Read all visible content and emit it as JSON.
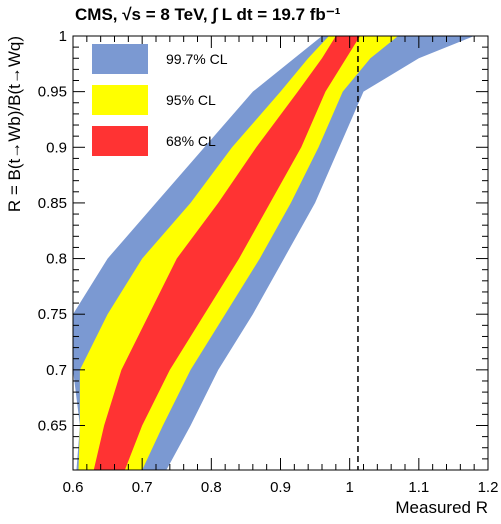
{
  "chart_data": {
    "type": "area",
    "title": "CMS,  √s = 8 TeV,  ∫ L dt = 19.7 fb⁻¹",
    "xlabel": "Measured R",
    "ylabel": "R = B(t→Wb)/B(t→Wq)",
    "xlim": [
      0.6,
      1.2
    ],
    "ylim": [
      0.61,
      1.0
    ],
    "xticks": [
      0.6,
      0.7,
      0.8,
      0.9,
      1.0,
      1.1,
      1.2
    ],
    "xtick_labels": [
      "0.6",
      "0.7",
      "0.8",
      "0.9",
      "1",
      "1.1",
      "1.2"
    ],
    "yticks": [
      0.65,
      0.7,
      0.75,
      0.8,
      0.85,
      0.9,
      0.95,
      1.0
    ],
    "ytick_labels": [
      "0.65",
      "0.7",
      "0.75",
      "0.8",
      "0.85",
      "0.9",
      "0.95",
      "1"
    ],
    "reference_line": {
      "x": 1.012,
      "style": "dashed"
    },
    "legend_position": "top-left",
    "series": [
      {
        "name": "99.7% CL",
        "color": "#7b99d2",
        "y": [
          0.61,
          0.65,
          0.7,
          0.75,
          0.8,
          0.85,
          0.9,
          0.95,
          0.98,
          1.0
        ],
        "x_low": [
          0.605,
          0.61,
          0.6,
          0.6,
          0.65,
          0.72,
          0.79,
          0.86,
          0.92,
          0.96
        ],
        "x_high": [
          0.735,
          0.77,
          0.81,
          0.86,
          0.905,
          0.95,
          0.985,
          1.02,
          1.1,
          1.18
        ]
      },
      {
        "name": "95% CL",
        "color": "#ffff00",
        "y": [
          0.61,
          0.65,
          0.7,
          0.75,
          0.8,
          0.85,
          0.9,
          0.95,
          0.98,
          1.0
        ],
        "x_low": [
          0.608,
          0.61,
          0.61,
          0.65,
          0.7,
          0.77,
          0.83,
          0.9,
          0.94,
          0.97
        ],
        "x_high": [
          0.7,
          0.73,
          0.77,
          0.82,
          0.87,
          0.915,
          0.955,
          0.99,
          1.03,
          1.07
        ]
      },
      {
        "name": "68% CL",
        "color": "#ff3333",
        "y": [
          0.61,
          0.65,
          0.7,
          0.75,
          0.8,
          0.85,
          0.9,
          0.95,
          0.98,
          1.0
        ],
        "x_low": [
          0.63,
          0.645,
          0.67,
          0.71,
          0.75,
          0.81,
          0.865,
          0.925,
          0.96,
          0.98
        ],
        "x_high": [
          0.675,
          0.7,
          0.74,
          0.79,
          0.84,
          0.885,
          0.93,
          0.965,
          0.995,
          1.015
        ]
      }
    ]
  }
}
